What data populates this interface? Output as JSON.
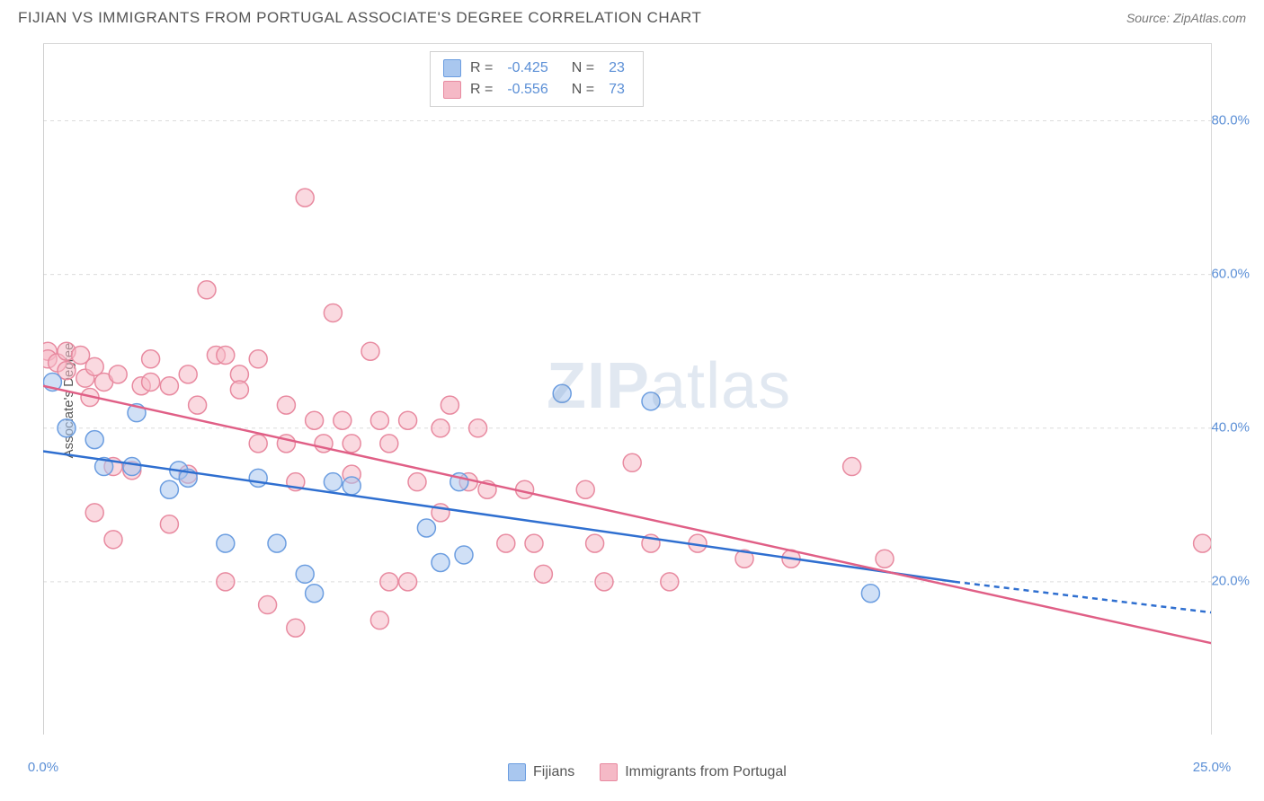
{
  "header": {
    "title": "FIJIAN VS IMMIGRANTS FROM PORTUGAL ASSOCIATE'S DEGREE CORRELATION CHART",
    "source_label": "Source: ZipAtlas.com"
  },
  "watermark": {
    "text_bold": "ZIP",
    "text_light": "atlas"
  },
  "chart": {
    "type": "scatter",
    "ylabel": "Associate's Degree",
    "xlim": [
      0,
      25
    ],
    "ylim": [
      0,
      90
    ],
    "ytick_values": [
      20,
      40,
      60,
      80
    ],
    "ytick_labels": [
      "20.0%",
      "40.0%",
      "60.0%",
      "80.0%"
    ],
    "xtick_values": [
      0,
      3.1,
      6.2,
      9.3,
      12.4,
      15.5,
      18.6,
      21.7,
      25
    ],
    "xtick_labels_shown": {
      "0": "0.0%",
      "25": "25.0%"
    },
    "grid_color": "#dcdcdc",
    "axis_color": "#bfbfbf",
    "background_color": "#ffffff",
    "marker_radius": 10,
    "marker_opacity": 0.55,
    "series": {
      "fijians": {
        "label": "Fijians",
        "color_fill": "#a9c7ef",
        "color_stroke": "#6b9de0",
        "R": "-0.425",
        "N": "23",
        "regression": {
          "x1": 0,
          "y1": 37,
          "x2": 19.5,
          "y2": 20,
          "dash_x1": 19.5,
          "dash_y1": 20,
          "dash_x2": 25,
          "dash_y2": 16,
          "line_color": "#2f6fd0",
          "line_width": 2.5
        },
        "points": [
          [
            0.2,
            46
          ],
          [
            0.5,
            40
          ],
          [
            1.1,
            38.5
          ],
          [
            1.3,
            35
          ],
          [
            1.9,
            35
          ],
          [
            2.0,
            42
          ],
          [
            2.9,
            34.5
          ],
          [
            2.7,
            32
          ],
          [
            3.1,
            33.5
          ],
          [
            4.6,
            33.5
          ],
          [
            3.9,
            25
          ],
          [
            5.0,
            25
          ],
          [
            5.6,
            21
          ],
          [
            5.8,
            18.5
          ],
          [
            6.2,
            33
          ],
          [
            6.6,
            32.5
          ],
          [
            8.5,
            22.5
          ],
          [
            8.2,
            27
          ],
          [
            8.9,
            33
          ],
          [
            9.0,
            23.5
          ],
          [
            11.1,
            44.5
          ],
          [
            13.0,
            43.5
          ],
          [
            17.7,
            18.5
          ]
        ]
      },
      "portugal": {
        "label": "Immigrants from Portugal",
        "color_fill": "#f5b9c6",
        "color_stroke": "#e88aa0",
        "R": "-0.556",
        "N": "73",
        "regression": {
          "x1": 0,
          "y1": 45.5,
          "x2": 25,
          "y2": 12,
          "line_color": "#e05f86",
          "line_width": 2.5
        },
        "points": [
          [
            0.1,
            50
          ],
          [
            0.1,
            49
          ],
          [
            0.3,
            48.5
          ],
          [
            0.5,
            50
          ],
          [
            0.5,
            47.5
          ],
          [
            0.8,
            49.5
          ],
          [
            0.9,
            46.5
          ],
          [
            1.1,
            48
          ],
          [
            1.3,
            46
          ],
          [
            1.6,
            47
          ],
          [
            1.0,
            44
          ],
          [
            1.5,
            35
          ],
          [
            1.1,
            29
          ],
          [
            1.5,
            25.5
          ],
          [
            2.1,
            45.5
          ],
          [
            1.9,
            34.5
          ],
          [
            2.3,
            49
          ],
          [
            2.3,
            46
          ],
          [
            2.7,
            45.5
          ],
          [
            2.7,
            27.5
          ],
          [
            3.1,
            47
          ],
          [
            3.3,
            43
          ],
          [
            3.1,
            34
          ],
          [
            3.5,
            58
          ],
          [
            3.7,
            49.5
          ],
          [
            3.9,
            49.5
          ],
          [
            4.2,
            47
          ],
          [
            4.2,
            45
          ],
          [
            3.9,
            20
          ],
          [
            4.6,
            49
          ],
          [
            4.6,
            38
          ],
          [
            5.2,
            43
          ],
          [
            5.2,
            38
          ],
          [
            5.4,
            33
          ],
          [
            4.8,
            17
          ],
          [
            5.6,
            70
          ],
          [
            5.8,
            41
          ],
          [
            6.0,
            38
          ],
          [
            5.4,
            14
          ],
          [
            6.2,
            55
          ],
          [
            6.4,
            41
          ],
          [
            6.6,
            38
          ],
          [
            6.6,
            34
          ],
          [
            7.0,
            50
          ],
          [
            7.2,
            41
          ],
          [
            7.4,
            38
          ],
          [
            7.4,
            20
          ],
          [
            7.2,
            15
          ],
          [
            7.8,
            41
          ],
          [
            7.8,
            20
          ],
          [
            8.0,
            33
          ],
          [
            8.5,
            40
          ],
          [
            8.5,
            29
          ],
          [
            8.7,
            43
          ],
          [
            9.1,
            33
          ],
          [
            9.3,
            40
          ],
          [
            9.5,
            32
          ],
          [
            9.9,
            25
          ],
          [
            10.3,
            32
          ],
          [
            10.5,
            25
          ],
          [
            10.7,
            21
          ],
          [
            11.6,
            32
          ],
          [
            11.8,
            25
          ],
          [
            12.0,
            20
          ],
          [
            12.6,
            35.5
          ],
          [
            13.0,
            25
          ],
          [
            13.4,
            20
          ],
          [
            14.0,
            25
          ],
          [
            15.0,
            23
          ],
          [
            16.0,
            23
          ],
          [
            17.3,
            35
          ],
          [
            18.0,
            23
          ],
          [
            24.8,
            25
          ]
        ]
      }
    }
  },
  "top_legend": {
    "rows": [
      {
        "swatch": "fijians",
        "r_label": "R =",
        "r_val": "-0.425",
        "n_label": "N =",
        "n_val": "23"
      },
      {
        "swatch": "portugal",
        "r_label": "R =",
        "r_val": "-0.556",
        "n_label": "N =",
        "n_val": "73"
      }
    ]
  },
  "bottom_legend": {
    "items": [
      {
        "swatch": "fijians",
        "label": "Fijians"
      },
      {
        "swatch": "portugal",
        "label": "Immigrants from Portugal"
      }
    ]
  }
}
